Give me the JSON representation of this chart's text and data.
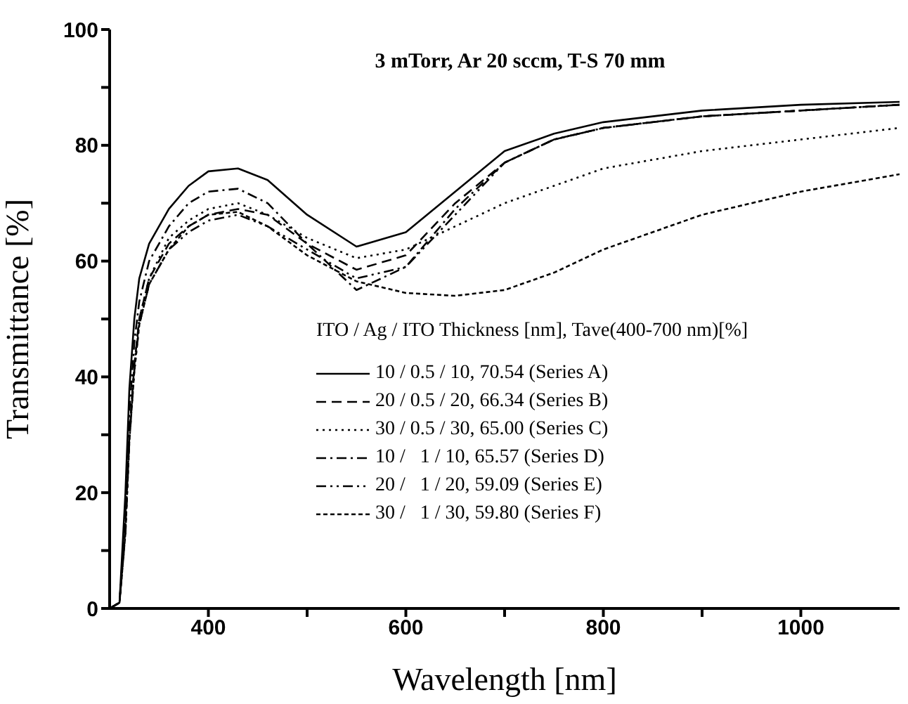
{
  "chart_data": {
    "type": "line",
    "title": "3 mTorr, Ar 20 sccm, T-S 70 mm",
    "xlabel": "Wavelength [nm]",
    "ylabel": "Transmittance [%]",
    "legend_title": "ITO / Ag / ITO Thickness [nm], Tave(400-700 nm)[%]",
    "legend": "bottom left",
    "marker": "none",
    "x": [
      300,
      310,
      316,
      320,
      325,
      330,
      340,
      360,
      380,
      400,
      430,
      460,
      500,
      550,
      600,
      650,
      700,
      750,
      800,
      900,
      1000,
      1100
    ],
    "xlim": [
      300,
      1100
    ],
    "xticks": [
      {
        "value": 400,
        "label": "400"
      },
      {
        "value": 500,
        "label": null
      },
      {
        "value": 600,
        "label": "600"
      },
      {
        "value": 700,
        "label": null
      },
      {
        "value": 800,
        "label": "800"
      },
      {
        "value": 900,
        "label": null
      },
      {
        "value": 1000,
        "label": "1000"
      }
    ],
    "ylim": [
      0,
      100
    ],
    "yticks": [
      0,
      {
        "value": 10,
        "label": null
      },
      20,
      {
        "value": 30,
        "label": null
      },
      40,
      {
        "value": 50,
        "label": null
      },
      60,
      {
        "value": 70,
        "label": null
      },
      80,
      {
        "value": 90,
        "label": null
      },
      100
    ],
    "series": [
      {
        "name": "10 / 0.5 / 10, 70.54 (Series A)",
        "color": "#000000",
        "line_style": "solid",
        "values": [
          0,
          1,
          20,
          38,
          50,
          57,
          63,
          69,
          73,
          75.5,
          76,
          74,
          68,
          62.5,
          65,
          72,
          79,
          82,
          84,
          86,
          87,
          87.5
        ]
      },
      {
        "name": "20 / 0.5 / 20, 66.34 (Series B)",
        "color": "#000000",
        "line_style": "dashed",
        "values": [
          0,
          1,
          14,
          30,
          42,
          50,
          57,
          63,
          66,
          68,
          69,
          68,
          63,
          58.5,
          61,
          70,
          77,
          81,
          83,
          85,
          86,
          87
        ]
      },
      {
        "name": "30 / 0.5 / 30, 65.00 (Series C)",
        "color": "#000000",
        "line_style": "dotted",
        "values": [
          0,
          1,
          14,
          30,
          42,
          50,
          57,
          64,
          67,
          69,
          70,
          68,
          64,
          60.5,
          62,
          66,
          70,
          73,
          76,
          79,
          81,
          83
        ]
      },
      {
        "name": "10 /   1 / 10, 65.57 (Series D)",
        "color": "#000000",
        "line_style": "dashdot",
        "values": [
          0,
          1,
          16,
          34,
          46,
          53,
          60,
          66,
          70,
          72,
          72.5,
          70,
          63,
          55,
          59,
          69,
          77,
          81,
          83,
          85,
          86,
          87
        ]
      },
      {
        "name": "20 /   1 / 20, 59.09 (Series E)",
        "color": "#000000",
        "line_style": "dashdotdot",
        "values": [
          0,
          1,
          13,
          29,
          41,
          49,
          56,
          62,
          65,
          67,
          68,
          66,
          62,
          57,
          59,
          68,
          77,
          81,
          83,
          85,
          86,
          87
        ]
      },
      {
        "name": "30 /   1 / 30, 59.80 (Series F)",
        "color": "#000000",
        "line_style": "shortdash",
        "values": [
          0,
          1,
          13,
          29,
          41,
          49,
          56,
          62,
          66,
          68,
          68.5,
          66,
          61,
          56.5,
          54.5,
          54,
          55,
          58,
          62,
          68,
          72,
          75
        ]
      }
    ]
  }
}
